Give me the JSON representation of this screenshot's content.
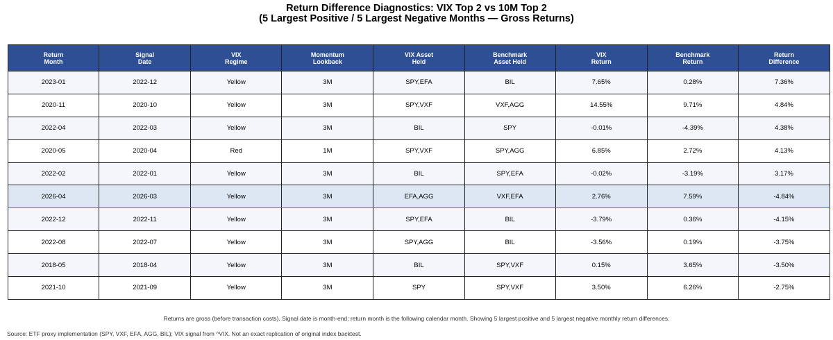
{
  "title_line1": "Return Difference Diagnostics: VIX Top 2 vs 10M Top 2",
  "title_line2": "(5 Largest Positive / 5 Largest Negative Months — Gross Returns)",
  "colors": {
    "header_bg": "#2e4f93",
    "header_text": "#ffffff",
    "highlight_row_bg": "#dde6f3",
    "highlight_row_border": "#4a72b8"
  },
  "chart_data": {
    "type": "table",
    "columns": [
      [
        "Return",
        "Month"
      ],
      [
        "Signal",
        "Date"
      ],
      [
        "VIX",
        "Regime"
      ],
      [
        "Momentum",
        "Lookback"
      ],
      [
        "VIX Asset",
        "Held"
      ],
      [
        "Benchmark",
        "Asset Held"
      ],
      [
        "VIX",
        "Return"
      ],
      [
        "Benchmark",
        "Return"
      ],
      [
        "Return",
        "Difference"
      ]
    ],
    "rows": [
      [
        "2023-01",
        "2022-12",
        "Yellow",
        "3M",
        "SPY,EFA",
        "BIL",
        "7.65%",
        "0.28%",
        "7.36%"
      ],
      [
        "2020-11",
        "2020-10",
        "Yellow",
        "3M",
        "SPY,VXF",
        "VXF,AGG",
        "14.55%",
        "9.71%",
        "4.84%"
      ],
      [
        "2022-04",
        "2022-03",
        "Yellow",
        "3M",
        "BIL",
        "SPY",
        "-0.01%",
        "-4.39%",
        "4.38%"
      ],
      [
        "2020-05",
        "2020-04",
        "Red",
        "1M",
        "SPY,VXF",
        "SPY,AGG",
        "6.85%",
        "2.72%",
        "4.13%"
      ],
      [
        "2022-02",
        "2022-01",
        "Yellow",
        "3M",
        "BIL",
        "SPY,EFA",
        "-0.02%",
        "-3.19%",
        "3.17%"
      ],
      [
        "2026-04",
        "2026-03",
        "Yellow",
        "3M",
        "EFA,AGG",
        "VXF,EFA",
        "2.76%",
        "7.59%",
        "-4.84%"
      ],
      [
        "2022-12",
        "2022-11",
        "Yellow",
        "3M",
        "SPY,EFA",
        "BIL",
        "-3.79%",
        "0.36%",
        "-4.15%"
      ],
      [
        "2022-08",
        "2022-07",
        "Yellow",
        "3M",
        "SPY,AGG",
        "BIL",
        "-3.56%",
        "0.19%",
        "-3.75%"
      ],
      [
        "2018-05",
        "2018-04",
        "Yellow",
        "3M",
        "BIL",
        "SPY,VXF",
        "0.15%",
        "3.65%",
        "-3.50%"
      ],
      [
        "2021-10",
        "2021-09",
        "Yellow",
        "3M",
        "SPY",
        "SPY,VXF",
        "3.50%",
        "6.26%",
        "-2.75%"
      ]
    ],
    "highlighted_row": 5
  },
  "note": "Returns are gross (before transaction costs). Signal date is month-end; return month is the following calendar month. Showing 5 largest positive and 5 largest negative monthly return differences.",
  "source": "Source: ETF proxy implementation (SPY, VXF, EFA, AGG, BIL); VIX signal from ^VIX. Not an exact replication of original index backtest."
}
